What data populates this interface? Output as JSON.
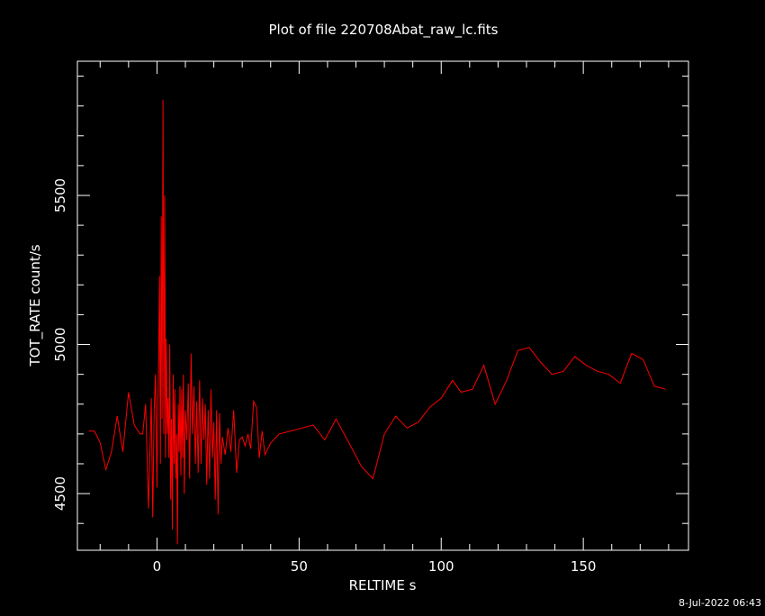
{
  "chart_data": {
    "type": "line",
    "title": "Plot of file 220708Abat_raw_lc.fits",
    "xlabel": "RELTIME  s",
    "ylabel": "TOT_RATE  count/s",
    "xlim": [
      -28,
      187
    ],
    "ylim": [
      4310,
      5950
    ],
    "xticks": [
      0,
      50,
      100,
      150
    ],
    "xtick_labels": [
      "0",
      "50",
      "100",
      "150"
    ],
    "yticks": [
      4500,
      5000,
      5500
    ],
    "ytick_labels": [
      "4500",
      "5000",
      "5500"
    ],
    "grid": false,
    "series": [
      {
        "color": "#ff0000",
        "points": [
          [
            -24,
            4710
          ],
          [
            -22,
            4710
          ],
          [
            -20,
            4670
          ],
          [
            -18,
            4580
          ],
          [
            -16,
            4640
          ],
          [
            -14,
            4760
          ],
          [
            -12,
            4640
          ],
          [
            -10,
            4840
          ],
          [
            -8,
            4730
          ],
          [
            -6,
            4700
          ],
          [
            -5,
            4700
          ],
          [
            -4,
            4800
          ],
          [
            -3,
            4450
          ],
          [
            -2,
            4820
          ],
          [
            -1.5,
            4420
          ],
          [
            -1,
            4780
          ],
          [
            -0.5,
            4900
          ],
          [
            0,
            4520
          ],
          [
            0.3,
            4800
          ],
          [
            0.6,
            4950
          ],
          [
            0.9,
            5230
          ],
          [
            1.2,
            4600
          ],
          [
            1.5,
            5430
          ],
          [
            1.8,
            4750
          ],
          [
            2.1,
            5820
          ],
          [
            2.4,
            4700
          ],
          [
            2.7,
            5500
          ],
          [
            3.0,
            4620
          ],
          [
            3.3,
            5020
          ],
          [
            3.6,
            4700
          ],
          [
            3.9,
            4820
          ],
          [
            4.2,
            4620
          ],
          [
            4.5,
            5000
          ],
          [
            4.8,
            4480
          ],
          [
            5.1,
            4750
          ],
          [
            5.4,
            4380
          ],
          [
            5.7,
            4900
          ],
          [
            6.0,
            4600
          ],
          [
            6.3,
            4850
          ],
          [
            6.6,
            4550
          ],
          [
            6.9,
            4700
          ],
          [
            7.2,
            4330
          ],
          [
            7.5,
            4800
          ],
          [
            7.8,
            4640
          ],
          [
            8.1,
            4860
          ],
          [
            8.4,
            4560
          ],
          [
            8.7,
            4850
          ],
          [
            9.0,
            4620
          ],
          [
            9.3,
            4900
          ],
          [
            9.6,
            4500
          ],
          [
            10.0,
            4780
          ],
          [
            10.5,
            4680
          ],
          [
            11.0,
            4870
          ],
          [
            11.5,
            4550
          ],
          [
            12.0,
            4970
          ],
          [
            12.5,
            4700
          ],
          [
            13.0,
            4860
          ],
          [
            13.5,
            4600
          ],
          [
            14.0,
            4810
          ],
          [
            14.5,
            4570
          ],
          [
            15.0,
            4880
          ],
          [
            15.5,
            4600
          ],
          [
            16.0,
            4820
          ],
          [
            16.5,
            4680
          ],
          [
            17.0,
            4800
          ],
          [
            17.5,
            4530
          ],
          [
            18.0,
            4780
          ],
          [
            18.5,
            4550
          ],
          [
            19.0,
            4850
          ],
          [
            19.5,
            4620
          ],
          [
            20.0,
            4740
          ],
          [
            20.5,
            4480
          ],
          [
            21.0,
            4780
          ],
          [
            21.5,
            4430
          ],
          [
            22.0,
            4770
          ],
          [
            22.5,
            4600
          ],
          [
            23.0,
            4690
          ],
          [
            24.0,
            4630
          ],
          [
            25.0,
            4720
          ],
          [
            26.0,
            4640
          ],
          [
            27.0,
            4780
          ],
          [
            28.0,
            4570
          ],
          [
            29.0,
            4680
          ],
          [
            30.0,
            4690
          ],
          [
            31.0,
            4660
          ],
          [
            32.0,
            4700
          ],
          [
            33.0,
            4650
          ],
          [
            34.0,
            4810
          ],
          [
            35.0,
            4790
          ],
          [
            36.0,
            4620
          ],
          [
            37.0,
            4710
          ],
          [
            38.0,
            4630
          ],
          [
            39.0,
            4650
          ],
          [
            40.0,
            4670
          ],
          [
            43.0,
            4700
          ],
          [
            47.0,
            4710
          ],
          [
            51.0,
            4720
          ],
          [
            55.0,
            4730
          ],
          [
            59.0,
            4680
          ],
          [
            63.0,
            4750
          ],
          [
            67.0,
            4680
          ],
          [
            72.0,
            4590
          ],
          [
            76.0,
            4550
          ],
          [
            80.0,
            4700
          ],
          [
            84.0,
            4760
          ],
          [
            88.0,
            4720
          ],
          [
            92.0,
            4740
          ],
          [
            96.0,
            4790
          ],
          [
            100.0,
            4820
          ],
          [
            104.0,
            4880
          ],
          [
            107.0,
            4840
          ],
          [
            111.0,
            4850
          ],
          [
            115.0,
            4930
          ],
          [
            119.0,
            4800
          ],
          [
            123.0,
            4880
          ],
          [
            127.0,
            4980
          ],
          [
            131.0,
            4990
          ],
          [
            135.0,
            4940
          ],
          [
            139.0,
            4900
          ],
          [
            143.0,
            4910
          ],
          [
            147.0,
            4960
          ],
          [
            151.0,
            4930
          ],
          [
            155.0,
            4910
          ],
          [
            159.0,
            4900
          ],
          [
            163.0,
            4870
          ],
          [
            167.0,
            4970
          ],
          [
            171.0,
            4950
          ],
          [
            175.0,
            4860
          ],
          [
            179.0,
            4850
          ]
        ]
      }
    ]
  },
  "footer": {
    "timestamp": "8-Jul-2022 06:43"
  }
}
